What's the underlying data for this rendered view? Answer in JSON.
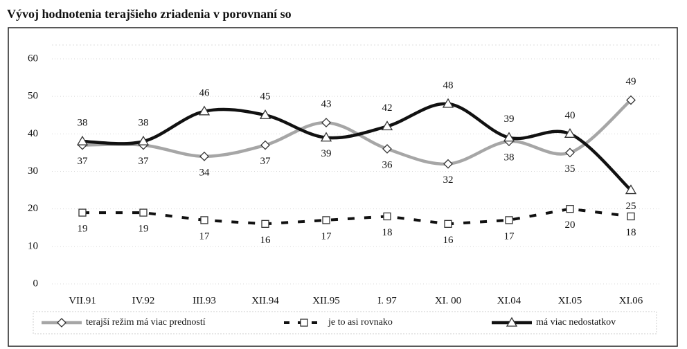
{
  "chart_data": {
    "type": "line",
    "title": "Vývoj hodnotenia terajšieho zriadenia v porovnaní so",
    "categories": [
      "VII.91",
      "IV.92",
      "III.93",
      "XII.94",
      "XII.95",
      "I. 97",
      "XI. 00",
      "XI.04",
      "XI.05",
      "XI.06"
    ],
    "series": [
      {
        "name": "terajší režim má viac predností",
        "color": "#a6a6a6",
        "marker": "diamond",
        "dash": false,
        "values": [
          37,
          37,
          34,
          37,
          43,
          36,
          32,
          38,
          35,
          49
        ]
      },
      {
        "name": "je to asi rovnako",
        "color": "#111111",
        "marker": "square",
        "dash": true,
        "values": [
          19,
          19,
          17,
          16,
          17,
          18,
          16,
          17,
          20,
          18
        ]
      },
      {
        "name": "má viac nedostatkov",
        "color": "#111111",
        "marker": "triangle",
        "dash": false,
        "values": [
          38,
          38,
          46,
          45,
          39,
          42,
          48,
          39,
          40,
          25
        ]
      }
    ],
    "ylim": [
      0,
      60
    ],
    "yticks": [
      0,
      10,
      20,
      30,
      40,
      50,
      60
    ],
    "grid": true,
    "legend": "bottom"
  }
}
